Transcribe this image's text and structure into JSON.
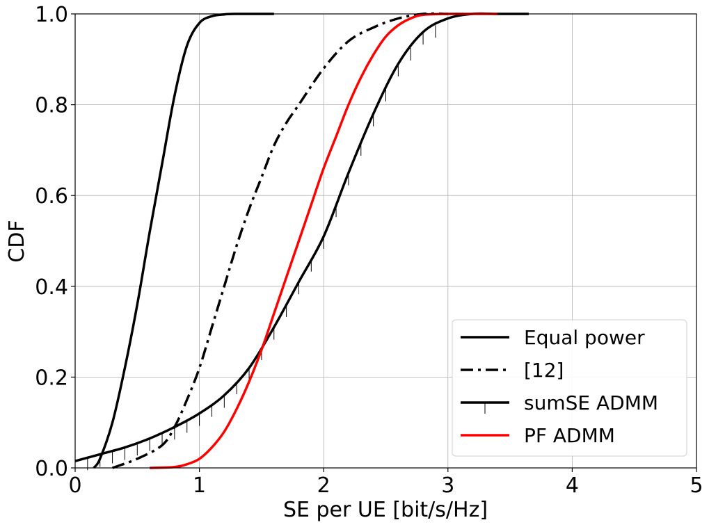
{
  "chart_data": {
    "type": "line",
    "title": "",
    "xlabel": "SE per UE [bit/s/Hz]",
    "ylabel": "CDF",
    "xlim": [
      0,
      5
    ],
    "ylim": [
      0,
      1
    ],
    "xticks": [
      0,
      1,
      2,
      3,
      4,
      5
    ],
    "yticks": [
      0,
      0.2,
      0.4,
      0.6,
      0.8,
      1.0
    ],
    "xtick_labels": [
      "0",
      "1",
      "2",
      "3",
      "4",
      "5"
    ],
    "ytick_labels": [
      "0.0",
      "0.2",
      "0.4",
      "0.6",
      "0.8",
      "1.0"
    ],
    "grid": true,
    "legend_position": "lower-right",
    "series": [
      {
        "name": "Equal power",
        "color": "#000000",
        "style": "solid",
        "x": [
          0.15,
          0.2,
          0.3,
          0.4,
          0.5,
          0.6,
          0.7,
          0.8,
          0.9,
          1.0,
          1.1,
          1.2,
          1.3,
          1.4,
          1.6
        ],
        "y": [
          0.0,
          0.02,
          0.1,
          0.22,
          0.36,
          0.52,
          0.67,
          0.82,
          0.93,
          0.98,
          0.995,
          0.999,
          1.0,
          1.0,
          1.0
        ]
      },
      {
        "name": "[12]",
        "color": "#000000",
        "style": "dashdot",
        "x": [
          0.3,
          0.5,
          0.7,
          0.8,
          0.9,
          1.0,
          1.1,
          1.2,
          1.3,
          1.4,
          1.5,
          1.6,
          1.7,
          1.8,
          2.0,
          2.2,
          2.4,
          2.6,
          2.8,
          3.0
        ],
        "y": [
          0.0,
          0.02,
          0.05,
          0.09,
          0.15,
          0.22,
          0.31,
          0.4,
          0.49,
          0.57,
          0.64,
          0.71,
          0.76,
          0.8,
          0.88,
          0.94,
          0.97,
          0.99,
          1.0,
          1.0
        ]
      },
      {
        "name": "sumSE ADMM",
        "color": "#000000",
        "style": "solid-ticks",
        "x": [
          0.0,
          0.2,
          0.4,
          0.6,
          0.8,
          1.0,
          1.2,
          1.4,
          1.6,
          1.8,
          2.0,
          2.2,
          2.4,
          2.6,
          2.8,
          3.0,
          3.2,
          3.4,
          3.65
        ],
        "y": [
          0.015,
          0.03,
          0.045,
          0.065,
          0.09,
          0.12,
          0.16,
          0.22,
          0.31,
          0.41,
          0.51,
          0.65,
          0.78,
          0.89,
          0.96,
          0.99,
          1.0,
          1.0,
          1.0
        ]
      },
      {
        "name": "PF ADMM",
        "color": "#ff0000",
        "style": "solid",
        "x": [
          0.6,
          0.8,
          0.9,
          1.0,
          1.1,
          1.2,
          1.3,
          1.4,
          1.5,
          1.6,
          1.7,
          1.8,
          1.9,
          2.0,
          2.1,
          2.2,
          2.3,
          2.4,
          2.5,
          2.6,
          2.7,
          2.8,
          3.0,
          3.2,
          3.4
        ],
        "y": [
          0.0,
          0.002,
          0.008,
          0.02,
          0.045,
          0.08,
          0.13,
          0.19,
          0.26,
          0.34,
          0.42,
          0.5,
          0.58,
          0.66,
          0.73,
          0.8,
          0.86,
          0.91,
          0.95,
          0.975,
          0.99,
          0.998,
          1.0,
          1.0,
          1.0
        ]
      }
    ]
  }
}
